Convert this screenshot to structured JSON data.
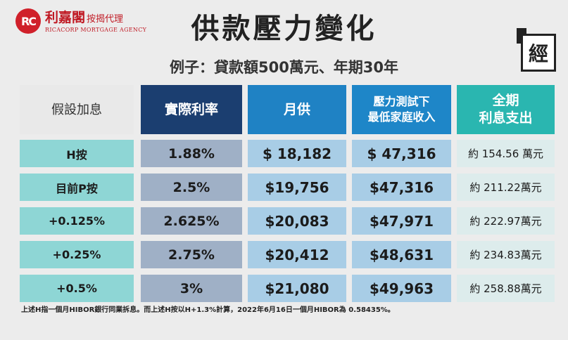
{
  "brand": {
    "logo_mark": "RC",
    "name_cn": "利嘉閣",
    "name_cn_sub": "按揭代理",
    "name_en": "RICACORP MORTGAGE AGENCY"
  },
  "badge": "經",
  "title": "供款壓力變化",
  "subtitle": "例子：貸款額500萬元、年期30年",
  "headers": [
    "假設加息",
    "實際利率",
    "月供",
    "壓力測試下\n最低家庭收入",
    "全期\n利息支出"
  ],
  "rows": [
    {
      "label": "H按",
      "rate": "1.88%",
      "payment": "$ 18,182",
      "min_income": "$ 47,316",
      "interest": "約 154.56 萬元"
    },
    {
      "label": "目前P按",
      "rate": "2.5%",
      "payment": "$19,756",
      "min_income": "$47,316",
      "interest": "約 211.22萬元"
    },
    {
      "label": "+0.125%",
      "rate": "2.625%",
      "payment": "$20,083",
      "min_income": "$47,971",
      "interest": "約 222.97萬元"
    },
    {
      "label": "+0.25%",
      "rate": "2.75%",
      "payment": "$20,412",
      "min_income": "$48,631",
      "interest": "約 234.83萬元"
    },
    {
      "label": "+0.5%",
      "rate": "3%",
      "payment": "$21,080",
      "min_income": "$49,963",
      "interest": "約 258.88萬元"
    }
  ],
  "footnote": "上述H指一個月HIBOR銀行同業拆息。而上述H按以H+1.3%計算，2022年6月16日一個月HIBOR為 0.58435%。",
  "colors": {
    "header_rate": "#1b3e70",
    "header_blue": "#1f82c4",
    "header_teal": "#2ab6b0",
    "label_teal": "#8ed6d5",
    "rate_gray": "#9fb0c6",
    "value_blue": "#a8cde6",
    "interest_pale": "#ddecec",
    "brand_red": "#c01a24"
  }
}
